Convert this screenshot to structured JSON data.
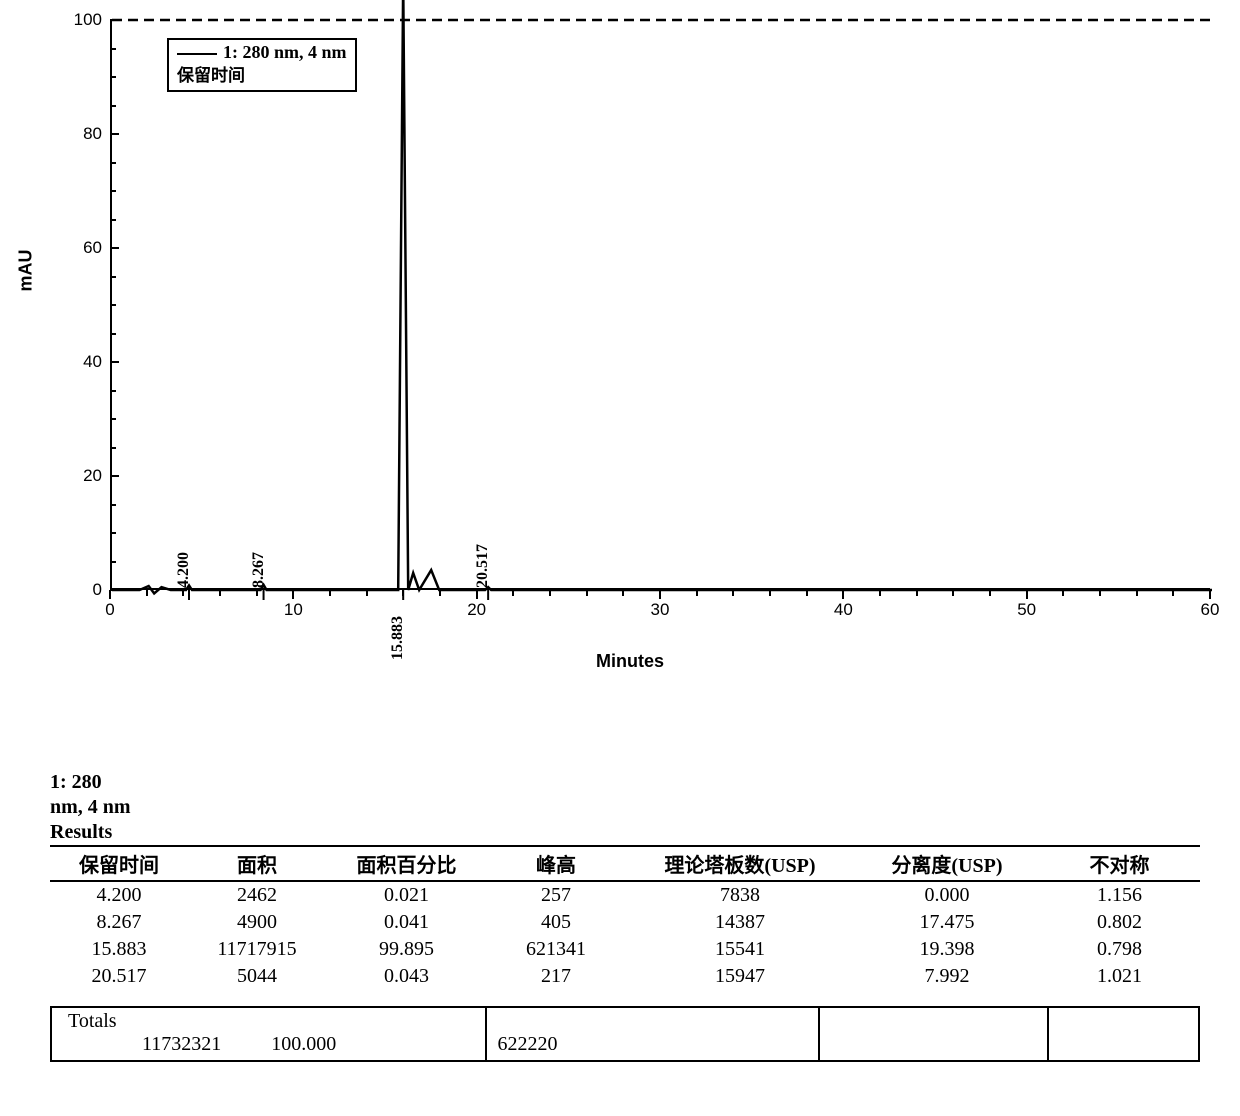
{
  "chart": {
    "type": "line",
    "y_label": "mAU",
    "x_label": "Minutes",
    "legend_line1": "1: 280 nm, 4 nm",
    "legend_line2": "保留时间",
    "xlim": [
      0,
      60
    ],
    "ylim": [
      0,
      100
    ],
    "x_ticks": [
      0,
      10,
      20,
      30,
      40,
      50,
      60
    ],
    "y_ticks": [
      0,
      20,
      40,
      60,
      80,
      100
    ],
    "x_minor_step": 2,
    "y_minor_step": 5,
    "line_color": "#000000",
    "line_width": 2.5,
    "dash_line_color": "#000000",
    "background_color": "#ffffff",
    "label_fontsize": 18,
    "tick_fontsize": 17,
    "peak_label_fontsize": 16,
    "peaks": [
      {
        "rt": 4.2,
        "label": "4.200",
        "height_mau": 0.8,
        "label_side": "above"
      },
      {
        "rt": 8.267,
        "label": "8.267",
        "height_mau": 0.9,
        "label_side": "above"
      },
      {
        "rt": 15.883,
        "label": "15.883",
        "height_mau": 600,
        "label_side": "below"
      },
      {
        "rt": 20.517,
        "label": "20.517",
        "height_mau": 0.5,
        "label_side": "above"
      }
    ],
    "baseline_y_mau": 0
  },
  "results": {
    "title_lines": [
      "1: 280",
      "nm, 4 nm",
      "Results"
    ],
    "columns": [
      "保留时间",
      "面积",
      "面积百分比",
      "峰高",
      "理论塔板数(USP)",
      "分离度(USP)",
      "不对称"
    ],
    "col_widths_pct": [
      12,
      12,
      14,
      12,
      20,
      16,
      14
    ],
    "rows": [
      [
        "4.200",
        "2462",
        "0.021",
        "257",
        "7838",
        "0.000",
        "1.156"
      ],
      [
        "8.267",
        "4900",
        "0.041",
        "405",
        "14387",
        "17.475",
        "0.802"
      ],
      [
        "15.883",
        "11717915",
        "99.895",
        "621341",
        "15541",
        "19.398",
        "0.798"
      ],
      [
        "20.517",
        "5044",
        "0.043",
        "217",
        "15947",
        "7.992",
        "1.021"
      ]
    ],
    "totals": {
      "label": "Totals",
      "area": "11732321",
      "area_pct": "100.000",
      "height": "622220",
      "cell_widths_pct": [
        38,
        29,
        20,
        13
      ]
    }
  }
}
